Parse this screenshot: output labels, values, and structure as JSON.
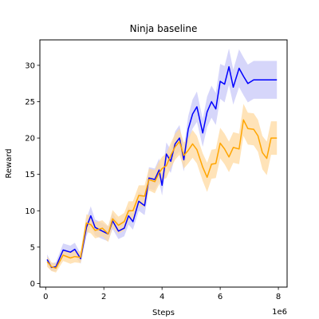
{
  "chart_data": {
    "type": "line",
    "title": "Ninja baseline",
    "xlabel": "Steps",
    "ylabel": "Reward",
    "x_offset_label": "1e6",
    "x_scale": 1000000,
    "xlim": [
      -200000,
      8300000
    ],
    "ylim": [
      -0.5,
      33.5
    ],
    "x_ticks": [
      0,
      2000000,
      4000000,
      6000000,
      8000000
    ],
    "x_tick_labels": [
      "0",
      "2",
      "4",
      "6",
      "8"
    ],
    "y_ticks": [
      0,
      5,
      10,
      15,
      20,
      25,
      30
    ],
    "y_tick_labels": [
      "0",
      "5",
      "10",
      "15",
      "20",
      "25",
      "30"
    ],
    "grid": false,
    "legend": "none",
    "x": [
      50000,
      200000,
      350000,
      600000,
      850000,
      1000000,
      1200000,
      1400000,
      1550000,
      1700000,
      1950000,
      2150000,
      2300000,
      2500000,
      2700000,
      2850000,
      3000000,
      3200000,
      3400000,
      3550000,
      3750000,
      3900000,
      4000000,
      4150000,
      4300000,
      4450000,
      4600000,
      4750000,
      4900000,
      5050000,
      5200000,
      5400000,
      5550000,
      5700000,
      5850000,
      6000000,
      6150000,
      6300000,
      6450000,
      6650000,
      6800000,
      6950000,
      7150000,
      7300000,
      7450000,
      7600000,
      7750000,
      7950000
    ],
    "series": [
      {
        "color": "#0000ff",
        "band_color": "#c8c8f8",
        "values": [
          3.3,
          2.2,
          2.3,
          4.6,
          4.3,
          4.7,
          3.4,
          7.7,
          9.3,
          7.7,
          7.2,
          6.8,
          8.6,
          7.2,
          7.6,
          9.3,
          8.5,
          11.3,
          10.7,
          14.5,
          14.3,
          15.6,
          13.5,
          17.8,
          16.8,
          19.2,
          20.0,
          17.0,
          21.2,
          23.3,
          24.3,
          20.7,
          23.6,
          25.0,
          24.0,
          27.8,
          27.4,
          29.8,
          27.0,
          29.6,
          28.5,
          27.5,
          28.0,
          28.0,
          28.0,
          28.0,
          28.0,
          28.0
        ],
        "lower": [
          2.6,
          1.7,
          1.7,
          3.7,
          3.4,
          3.8,
          2.7,
          6.5,
          8.0,
          6.6,
          6.1,
          5.8,
          7.5,
          6.1,
          6.5,
          8.1,
          7.4,
          10.0,
          9.4,
          13.0,
          12.8,
          14.0,
          12.1,
          16.2,
          15.2,
          17.5,
          18.2,
          15.4,
          19.4,
          21.3,
          22.2,
          18.8,
          21.5,
          22.8,
          21.8,
          25.4,
          24.9,
          27.3,
          24.6,
          27.0,
          25.9,
          24.9,
          25.4,
          25.4,
          25.4,
          25.4,
          25.4,
          25.4
        ],
        "upper": [
          4.0,
          2.8,
          2.9,
          5.5,
          5.2,
          5.6,
          4.1,
          8.9,
          10.6,
          8.8,
          8.3,
          7.8,
          9.7,
          8.3,
          8.7,
          10.5,
          9.6,
          12.6,
          12.0,
          16.0,
          15.8,
          17.2,
          14.9,
          19.4,
          18.4,
          20.9,
          21.8,
          18.6,
          23.0,
          25.3,
          26.4,
          22.6,
          25.7,
          27.2,
          26.2,
          30.2,
          29.9,
          32.3,
          29.4,
          32.2,
          31.1,
          30.1,
          30.6,
          30.6,
          30.6,
          30.6,
          30.6,
          30.6
        ]
      },
      {
        "color": "#ffa500",
        "band_color": "#ffd9a0",
        "values": [
          3.0,
          2.3,
          2.1,
          3.9,
          3.5,
          3.7,
          3.6,
          8.3,
          8.1,
          7.3,
          7.6,
          6.8,
          8.9,
          8.0,
          8.5,
          10.0,
          10.0,
          12.1,
          12.0,
          14.3,
          14.0,
          15.2,
          15.8,
          16.2,
          17.6,
          18.8,
          19.5,
          17.6,
          18.3,
          19.2,
          18.4,
          16.0,
          14.6,
          16.4,
          16.5,
          19.3,
          18.5,
          17.4,
          18.7,
          18.5,
          22.5,
          21.3,
          21.2,
          20.3,
          18.0,
          17.2,
          20.0,
          20.0
        ],
        "lower": [
          2.3,
          1.7,
          1.5,
          3.1,
          2.7,
          2.9,
          2.8,
          7.1,
          6.9,
          6.2,
          6.5,
          5.7,
          7.7,
          6.8,
          7.3,
          8.7,
          8.7,
          10.7,
          10.5,
          12.8,
          12.4,
          13.6,
          14.2,
          14.5,
          15.9,
          17.0,
          17.7,
          15.8,
          16.5,
          17.3,
          16.5,
          14.1,
          12.6,
          14.4,
          14.5,
          17.2,
          16.4,
          15.3,
          16.6,
          16.4,
          20.3,
          19.1,
          19.0,
          18.1,
          15.7,
          14.9,
          17.7,
          17.7
        ],
        "upper": [
          3.7,
          2.9,
          2.7,
          4.7,
          4.3,
          4.5,
          4.4,
          9.5,
          9.3,
          8.4,
          8.7,
          7.9,
          10.1,
          9.2,
          9.7,
          11.3,
          11.3,
          13.5,
          13.5,
          15.8,
          15.6,
          16.8,
          17.4,
          17.9,
          19.3,
          20.6,
          21.3,
          19.4,
          20.1,
          21.1,
          20.3,
          17.9,
          16.6,
          18.4,
          18.5,
          21.4,
          20.6,
          19.5,
          20.8,
          20.6,
          24.7,
          23.5,
          23.4,
          22.5,
          20.3,
          19.5,
          22.3,
          22.3
        ]
      }
    ]
  }
}
